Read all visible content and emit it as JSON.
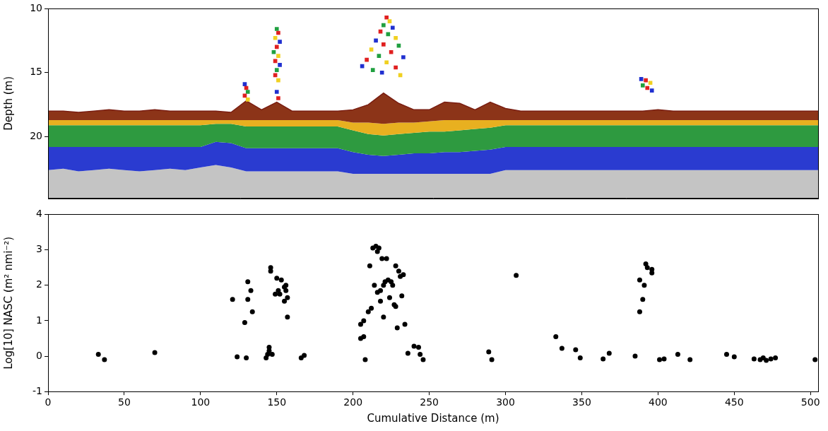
{
  "chart_data": [
    {
      "type": "echogram",
      "y_label": "Depth (m)",
      "xlim": [
        0,
        505
      ],
      "ylim": [
        10,
        24.8
      ],
      "yticks": [
        10,
        15,
        20
      ],
      "tick_labels": "y",
      "grid": false,
      "x": [
        0,
        10,
        20,
        30,
        40,
        50,
        60,
        70,
        80,
        90,
        100,
        110,
        120,
        130,
        140,
        150,
        160,
        170,
        180,
        190,
        200,
        210,
        220,
        230,
        240,
        250,
        260,
        270,
        280,
        290,
        300,
        310,
        320,
        330,
        340,
        350,
        360,
        370,
        380,
        390,
        400,
        410,
        420,
        430,
        440,
        450,
        460,
        470,
        480,
        490,
        500,
        505
      ],
      "series": [
        {
          "color": "#7a1e12",
          "values": [
            18.0,
            18.0,
            18.1,
            18.0,
            17.9,
            18.0,
            18.0,
            17.9,
            18.0,
            18.0,
            18.0,
            18.0,
            18.1,
            17.2,
            17.9,
            17.3,
            18.0,
            18.0,
            18.0,
            18.0,
            17.9,
            17.5,
            16.6,
            17.4,
            17.9,
            17.9,
            17.3,
            17.4,
            17.9,
            17.3,
            17.8,
            18.0,
            18.0,
            18.0,
            18.0,
            18.0,
            18.0,
            18.0,
            18.0,
            18.0,
            17.9,
            18.0,
            18.0,
            18.0,
            18.0,
            18.0,
            18.0,
            18.0,
            18.0,
            18.0,
            18.0,
            18.0
          ]
        },
        {
          "color": "#8c3418",
          "values": [
            18.7,
            18.7,
            18.7,
            18.7,
            18.7,
            18.7,
            18.7,
            18.7,
            18.7,
            18.7,
            18.7,
            18.7,
            18.7,
            18.7,
            18.7,
            18.7,
            18.7,
            18.7,
            18.7,
            18.7,
            18.9,
            18.9,
            19.0,
            18.9,
            18.9,
            18.8,
            18.7,
            18.7,
            18.7,
            18.7,
            18.7,
            18.7,
            18.7,
            18.7,
            18.7,
            18.7,
            18.7,
            18.7,
            18.7,
            18.7,
            18.7,
            18.7,
            18.7,
            18.7,
            18.7,
            18.7,
            18.7,
            18.7,
            18.7,
            18.7,
            18.7,
            18.7
          ]
        },
        {
          "color": "#e8b020",
          "values": [
            19.1,
            19.1,
            19.1,
            19.1,
            19.1,
            19.1,
            19.1,
            19.1,
            19.1,
            19.1,
            19.1,
            19.0,
            19.0,
            19.2,
            19.2,
            19.2,
            19.2,
            19.2,
            19.2,
            19.2,
            19.5,
            19.8,
            19.9,
            19.8,
            19.7,
            19.6,
            19.6,
            19.5,
            19.4,
            19.3,
            19.1,
            19.1,
            19.1,
            19.1,
            19.1,
            19.1,
            19.1,
            19.1,
            19.1,
            19.1,
            19.1,
            19.1,
            19.1,
            19.1,
            19.1,
            19.1,
            19.1,
            19.1,
            19.1,
            19.1,
            19.1,
            19.1
          ]
        },
        {
          "color": "#2e9a40",
          "values": [
            20.8,
            20.8,
            20.8,
            20.8,
            20.8,
            20.8,
            20.8,
            20.8,
            20.8,
            20.8,
            20.8,
            20.4,
            20.5,
            20.9,
            20.9,
            20.9,
            20.9,
            20.9,
            20.9,
            20.9,
            21.2,
            21.4,
            21.5,
            21.4,
            21.3,
            21.3,
            21.2,
            21.2,
            21.1,
            21.0,
            20.8,
            20.8,
            20.8,
            20.8,
            20.8,
            20.8,
            20.8,
            20.8,
            20.8,
            20.8,
            20.8,
            20.8,
            20.8,
            20.8,
            20.8,
            20.8,
            20.8,
            20.8,
            20.8,
            20.8,
            20.8,
            20.8
          ]
        },
        {
          "color": "#2a3bd0",
          "values": [
            22.6,
            22.5,
            22.7,
            22.6,
            22.5,
            22.6,
            22.7,
            22.6,
            22.5,
            22.6,
            22.4,
            22.2,
            22.4,
            22.7,
            22.7,
            22.7,
            22.7,
            22.7,
            22.7,
            22.7,
            22.9,
            22.9,
            22.9,
            22.9,
            22.9,
            22.9,
            22.9,
            22.9,
            22.9,
            22.9,
            22.6,
            22.6,
            22.6,
            22.6,
            22.6,
            22.6,
            22.6,
            22.6,
            22.6,
            22.6,
            22.6,
            22.6,
            22.6,
            22.6,
            22.6,
            22.6,
            22.6,
            22.6,
            22.6,
            22.6,
            22.6,
            22.6
          ]
        },
        {
          "color": "#c4c4c4",
          "values": [
            24.8,
            24.8,
            24.8,
            24.8,
            24.8,
            24.8,
            24.8,
            24.8,
            24.8,
            24.8,
            24.8,
            24.8,
            24.8,
            24.8,
            24.8,
            24.8,
            24.8,
            24.8,
            24.8,
            24.8,
            24.8,
            24.8,
            24.8,
            24.8,
            24.8,
            24.8,
            24.8,
            24.8,
            24.8,
            24.8,
            24.8,
            24.8,
            24.8,
            24.8,
            24.8,
            24.8,
            24.8,
            24.8,
            24.8,
            24.8,
            24.8,
            24.8,
            24.8,
            24.8,
            24.8,
            24.8,
            24.8,
            24.8,
            24.8,
            24.8,
            24.8,
            24.8
          ]
        }
      ],
      "schools": {
        "marker": "rect",
        "x": [
          129,
          130,
          131,
          129,
          131,
          150,
          151,
          149,
          152,
          150,
          148,
          151,
          149,
          152,
          150,
          149,
          151,
          150,
          151,
          222,
          224,
          220,
          226,
          218,
          223,
          228,
          215,
          220,
          230,
          212,
          225,
          217,
          233,
          209,
          222,
          228,
          213,
          219,
          231,
          206,
          389,
          392,
          395,
          390,
          393,
          396
        ],
        "values": [
          15.9,
          16.2,
          16.5,
          16.8,
          17.1,
          11.6,
          11.9,
          12.3,
          12.6,
          13.0,
          13.4,
          13.7,
          14.1,
          14.4,
          14.8,
          15.2,
          15.6,
          16.5,
          17.0,
          10.7,
          11.0,
          11.3,
          11.5,
          11.8,
          12.0,
          12.3,
          12.5,
          12.8,
          12.9,
          13.2,
          13.4,
          13.7,
          13.8,
          14.0,
          14.2,
          14.6,
          14.8,
          15.0,
          15.2,
          14.5,
          15.5,
          15.6,
          15.8,
          16.0,
          16.2,
          16.4
        ],
        "colors": [
          "#2030d0",
          "#e02020",
          "#20a040",
          "#e02020",
          "#f0d020",
          "#20a040",
          "#e02020",
          "#f0d020",
          "#2030d0",
          "#e02020",
          "#20a040",
          "#f0d020",
          "#e02020",
          "#2030d0",
          "#20a040",
          "#e02020",
          "#f0d020",
          "#2030d0",
          "#e02020",
          "#e02020",
          "#f0d020",
          "#20a040",
          "#2030d0",
          "#e02020",
          "#20a040",
          "#f0d020",
          "#2030d0",
          "#e02020",
          "#20a040",
          "#f0d020",
          "#e02020",
          "#20a040",
          "#2030d0",
          "#e02020",
          "#f0d020",
          "#e02020",
          "#20a040",
          "#2030d0",
          "#f0d020",
          "#2030d0",
          "#2030d0",
          "#e02020",
          "#f0d020",
          "#20a040",
          "#e02020",
          "#2030d0"
        ]
      }
    },
    {
      "type": "scatter",
      "x_label": "Cumulative Distance (m)",
      "y_label": "Log[10] NASC (m² nmi⁻²)",
      "xlim": [
        0,
        505
      ],
      "xticks": [
        0,
        50,
        100,
        150,
        200,
        250,
        300,
        350,
        400,
        450,
        500
      ],
      "ylim": [
        -1,
        4
      ],
      "yticks": [
        -1,
        0,
        1,
        2,
        3,
        4
      ],
      "grid": false,
      "color": "#000000",
      "marker": "circle",
      "x": [
        33,
        37,
        70,
        121,
        124,
        129,
        130,
        131,
        131,
        133,
        134,
        143,
        144,
        145,
        145,
        147,
        146,
        146,
        149,
        150,
        151,
        152,
        153,
        155,
        156,
        156,
        155,
        157,
        157,
        166,
        168,
        205,
        205,
        207,
        207,
        208,
        210,
        211,
        212,
        213,
        214,
        215,
        216,
        216,
        217,
        218,
        218,
        219,
        220,
        220,
        221,
        222,
        223,
        224,
        225,
        226,
        227,
        228,
        228,
        229,
        230,
        231,
        232,
        233,
        234,
        236,
        240,
        243,
        244,
        246,
        289,
        291,
        307,
        333,
        337,
        346,
        349,
        364,
        368,
        385,
        388,
        388,
        390,
        391,
        392,
        393,
        396,
        396,
        401,
        404,
        413,
        421,
        445,
        450,
        463,
        467,
        469,
        471,
        474,
        477,
        503
      ],
      "values": [
        0.05,
        -0.1,
        0.1,
        1.6,
        -0.02,
        0.95,
        -0.05,
        2.1,
        1.6,
        1.85,
        1.25,
        -0.05,
        0.05,
        0.25,
        0.15,
        0.05,
        2.5,
        2.4,
        1.75,
        2.2,
        1.85,
        1.75,
        2.15,
        1.95,
        2.0,
        1.85,
        1.55,
        1.65,
        1.1,
        -0.05,
        0.02,
        0.9,
        0.5,
        1.0,
        0.55,
        -0.1,
        1.25,
        2.55,
        1.35,
        3.05,
        2.0,
        3.1,
        1.8,
        2.95,
        3.05,
        1.55,
        1.85,
        2.75,
        1.1,
        2.0,
        2.1,
        2.75,
        2.15,
        1.65,
        2.1,
        2.0,
        1.45,
        1.4,
        2.55,
        0.8,
        2.4,
        2.25,
        1.7,
        2.3,
        0.9,
        0.08,
        0.28,
        0.25,
        0.05,
        -0.1,
        0.12,
        -0.1,
        2.28,
        0.55,
        0.22,
        0.18,
        -0.05,
        -0.08,
        0.08,
        0.0,
        1.25,
        2.15,
        1.6,
        2.0,
        2.6,
        2.5,
        2.45,
        2.35,
        -0.1,
        -0.08,
        0.05,
        -0.1,
        0.05,
        -0.02,
        -0.08,
        -0.1,
        -0.05,
        -0.12,
        -0.08,
        -0.05,
        -0.1
      ]
    }
  ]
}
